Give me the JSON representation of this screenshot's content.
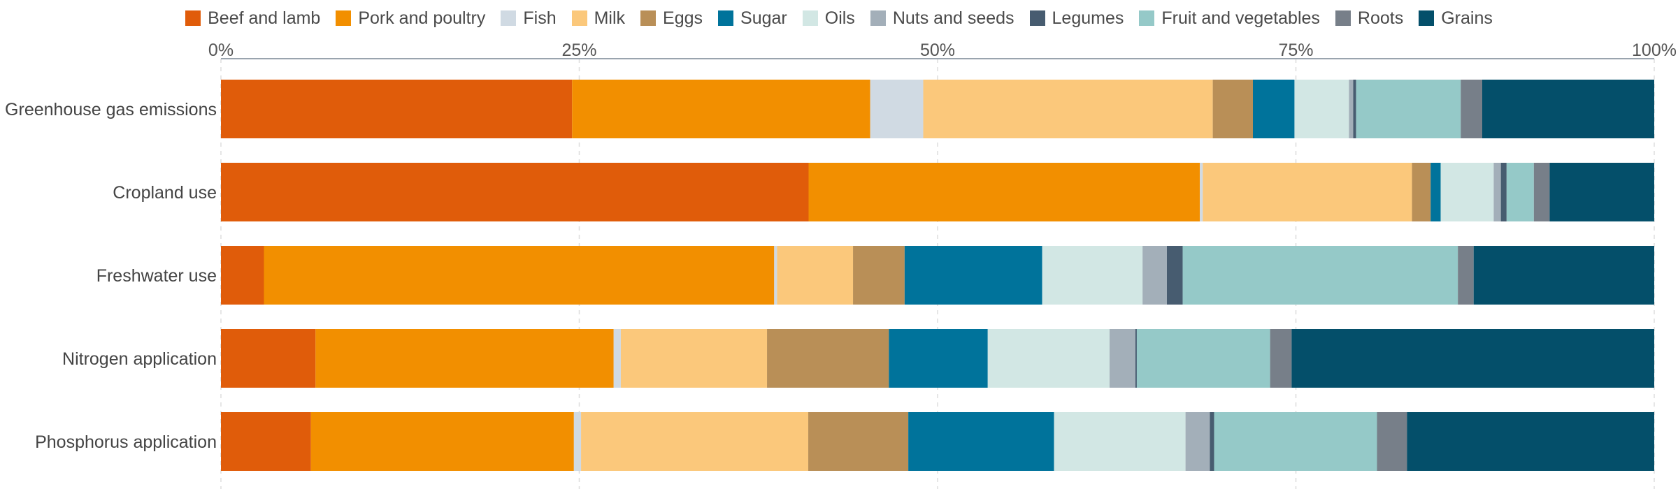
{
  "chart_data": {
    "type": "bar",
    "orientation": "horizontal",
    "stacked": true,
    "normalized": true,
    "title": "",
    "xlabel": "",
    "ylabel": "",
    "xlim": [
      0,
      100
    ],
    "x_ticks": [
      "0%",
      "25%",
      "50%",
      "75%",
      "100%"
    ],
    "x_tick_values": [
      0,
      25,
      50,
      75,
      100
    ],
    "x_axis_position": "top",
    "grid": true,
    "legend_position": "top-center",
    "categories": [
      "Greenhouse gas emissions",
      "Cropland use",
      "Freshwater use",
      "Nitrogen application",
      "Phosphorus application"
    ],
    "series": [
      {
        "name": "Beef and lamb",
        "color": "#E05C0A",
        "values": [
          24.5,
          41.0,
          3.0,
          6.6,
          6.3
        ]
      },
      {
        "name": "Pork and poultry",
        "color": "#F28F00",
        "values": [
          20.8,
          27.3,
          35.6,
          20.8,
          18.4
        ]
      },
      {
        "name": "Fish",
        "color": "#D0DAE3",
        "values": [
          3.7,
          0.2,
          0.2,
          0.5,
          0.5
        ]
      },
      {
        "name": "Milk",
        "color": "#FBC87B",
        "values": [
          20.2,
          14.6,
          5.3,
          10.2,
          15.9
        ]
      },
      {
        "name": "Eggs",
        "color": "#B98F57",
        "values": [
          2.8,
          1.3,
          3.6,
          8.5,
          7.0
        ]
      },
      {
        "name": "Sugar",
        "color": "#00739B",
        "values": [
          2.9,
          0.7,
          9.6,
          6.9,
          10.2
        ]
      },
      {
        "name": "Oils",
        "color": "#D2E7E4",
        "values": [
          3.8,
          3.7,
          7.0,
          8.5,
          9.2
        ]
      },
      {
        "name": "Nuts and seeds",
        "color": "#A3AFB9",
        "values": [
          0.3,
          0.5,
          1.7,
          1.8,
          1.7
        ]
      },
      {
        "name": "Legumes",
        "color": "#475C70",
        "values": [
          0.2,
          0.4,
          1.1,
          0.1,
          0.3
        ]
      },
      {
        "name": "Fruit and vegetables",
        "color": "#95C9C8",
        "values": [
          7.3,
          1.9,
          19.2,
          9.3,
          11.4
        ]
      },
      {
        "name": "Roots",
        "color": "#777F89",
        "values": [
          1.5,
          1.1,
          1.1,
          1.5,
          2.1
        ]
      },
      {
        "name": "Grains",
        "color": "#044F6A",
        "values": [
          12.0,
          7.3,
          12.6,
          25.3,
          17.3
        ]
      }
    ]
  }
}
